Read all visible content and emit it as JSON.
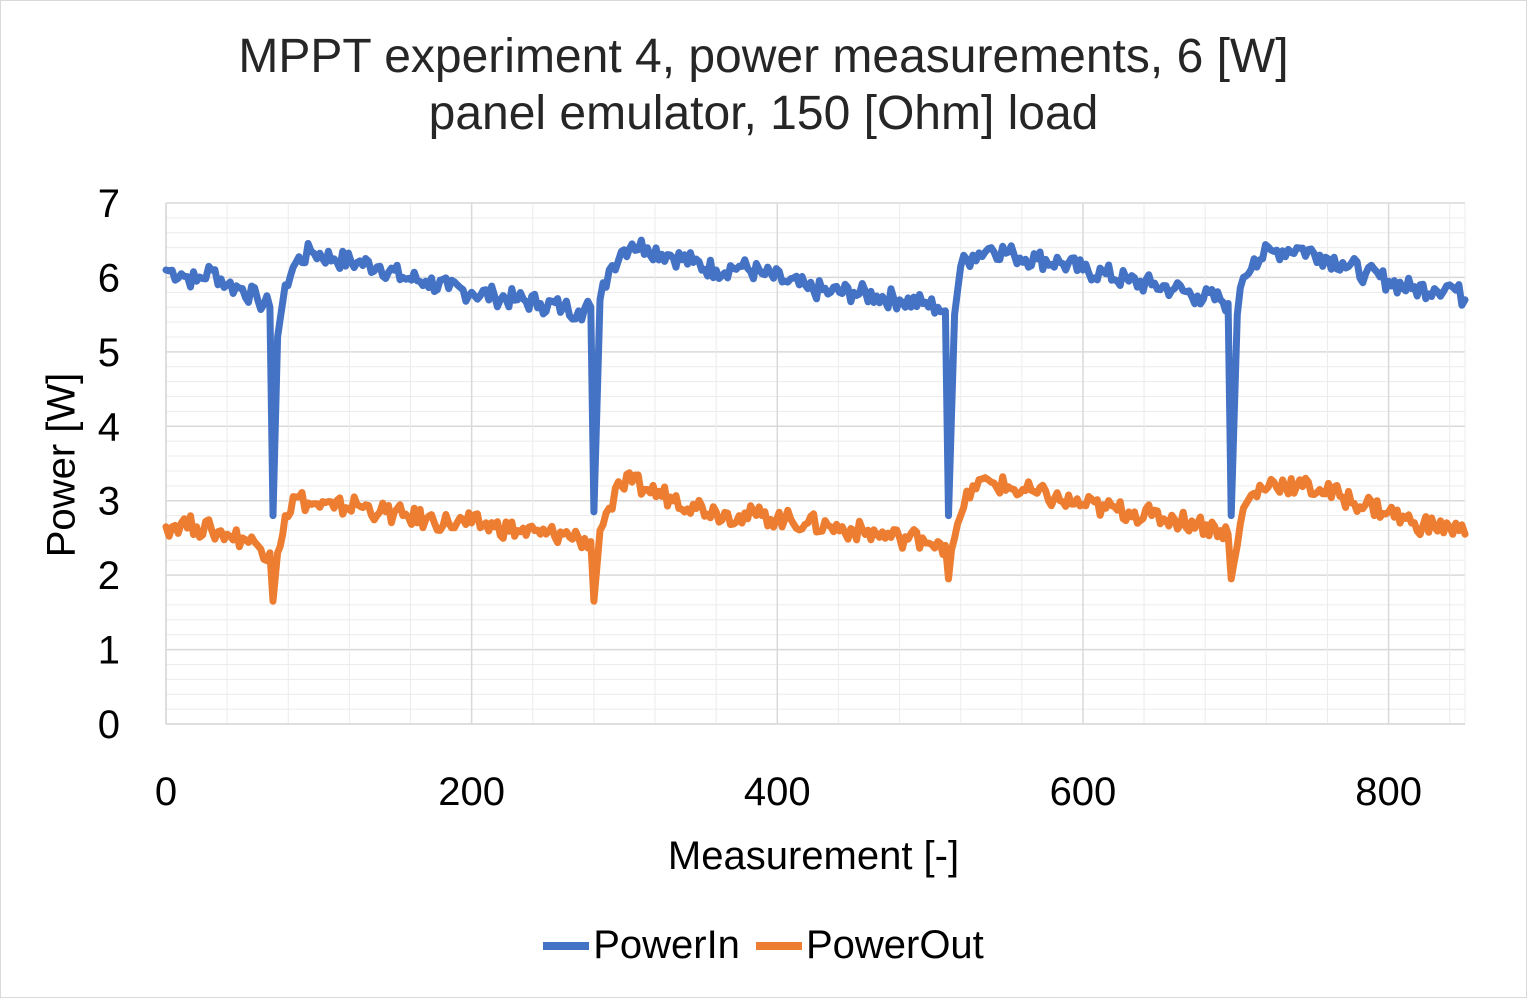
{
  "chart_data": {
    "type": "line",
    "title_line1": "MPPT experiment 4, power measurements, 6 [W]",
    "title_line2": "panel emulator, 150 [Ohm] load",
    "xlabel": "Measurement [-]",
    "ylabel": "Power [W]",
    "xlim": [
      0,
      850
    ],
    "ylim": [
      0,
      7
    ],
    "xticks": [
      "0",
      "200",
      "400",
      "600",
      "800"
    ],
    "yticks": [
      "0",
      "1",
      "2",
      "3",
      "4",
      "5",
      "6",
      "7"
    ],
    "grid": true,
    "legend_position": "bottom",
    "series": [
      {
        "name": "PowerIn",
        "color": "#4472c4",
        "points": [
          [
            0,
            6.1
          ],
          [
            10,
            6.05
          ],
          [
            20,
            5.95
          ],
          [
            30,
            6.1
          ],
          [
            40,
            5.9
          ],
          [
            50,
            5.85
          ],
          [
            60,
            5.7
          ],
          [
            68,
            5.6
          ],
          [
            70,
            2.8
          ],
          [
            73,
            5.2
          ],
          [
            78,
            5.9
          ],
          [
            85,
            6.2
          ],
          [
            95,
            6.35
          ],
          [
            110,
            6.25
          ],
          [
            125,
            6.2
          ],
          [
            140,
            6.15
          ],
          [
            155,
            6.0
          ],
          [
            170,
            5.95
          ],
          [
            185,
            5.85
          ],
          [
            200,
            5.8
          ],
          [
            215,
            5.75
          ],
          [
            230,
            5.7
          ],
          [
            245,
            5.65
          ],
          [
            260,
            5.6
          ],
          [
            270,
            5.55
          ],
          [
            278,
            5.6
          ],
          [
            280,
            2.85
          ],
          [
            284,
            5.7
          ],
          [
            290,
            6.1
          ],
          [
            298,
            6.35
          ],
          [
            305,
            6.45
          ],
          [
            315,
            6.4
          ],
          [
            330,
            6.3
          ],
          [
            345,
            6.2
          ],
          [
            360,
            6.1
          ],
          [
            375,
            6.15
          ],
          [
            390,
            6.05
          ],
          [
            405,
            5.95
          ],
          [
            420,
            5.85
          ],
          [
            435,
            5.8
          ],
          [
            450,
            5.8
          ],
          [
            465,
            5.75
          ],
          [
            480,
            5.7
          ],
          [
            495,
            5.65
          ],
          [
            505,
            5.6
          ],
          [
            510,
            5.55
          ],
          [
            512,
            2.8
          ],
          [
            516,
            5.5
          ],
          [
            520,
            6.15
          ],
          [
            528,
            6.3
          ],
          [
            540,
            6.4
          ],
          [
            555,
            6.3
          ],
          [
            570,
            6.25
          ],
          [
            585,
            6.2
          ],
          [
            600,
            6.1
          ],
          [
            615,
            6.05
          ],
          [
            630,
            5.95
          ],
          [
            645,
            5.9
          ],
          [
            660,
            5.85
          ],
          [
            675,
            5.75
          ],
          [
            690,
            5.7
          ],
          [
            695,
            5.65
          ],
          [
            697,
            2.8
          ],
          [
            701,
            5.5
          ],
          [
            705,
            6.0
          ],
          [
            712,
            6.25
          ],
          [
            725,
            6.35
          ],
          [
            740,
            6.4
          ],
          [
            755,
            6.3
          ],
          [
            770,
            6.2
          ],
          [
            785,
            6.05
          ],
          [
            800,
            5.95
          ],
          [
            815,
            5.85
          ],
          [
            830,
            5.85
          ],
          [
            840,
            5.9
          ],
          [
            850,
            5.7
          ]
        ]
      },
      {
        "name": "PowerOut",
        "color": "#ed7d31",
        "points": [
          [
            0,
            2.65
          ],
          [
            10,
            2.7
          ],
          [
            20,
            2.65
          ],
          [
            30,
            2.6
          ],
          [
            40,
            2.55
          ],
          [
            50,
            2.5
          ],
          [
            60,
            2.4
          ],
          [
            68,
            2.3
          ],
          [
            70,
            1.65
          ],
          [
            73,
            2.3
          ],
          [
            78,
            2.8
          ],
          [
            85,
            3.05
          ],
          [
            95,
            2.95
          ],
          [
            110,
            2.9
          ],
          [
            125,
            2.95
          ],
          [
            140,
            2.85
          ],
          [
            155,
            2.8
          ],
          [
            170,
            2.75
          ],
          [
            185,
            2.7
          ],
          [
            200,
            2.7
          ],
          [
            215,
            2.65
          ],
          [
            230,
            2.6
          ],
          [
            245,
            2.55
          ],
          [
            260,
            2.55
          ],
          [
            270,
            2.5
          ],
          [
            278,
            2.45
          ],
          [
            280,
            1.65
          ],
          [
            284,
            2.6
          ],
          [
            290,
            2.9
          ],
          [
            298,
            3.2
          ],
          [
            305,
            3.25
          ],
          [
            315,
            3.15
          ],
          [
            330,
            3.05
          ],
          [
            345,
            2.95
          ],
          [
            360,
            2.85
          ],
          [
            375,
            2.8
          ],
          [
            390,
            2.8
          ],
          [
            405,
            2.75
          ],
          [
            420,
            2.7
          ],
          [
            435,
            2.65
          ],
          [
            450,
            2.6
          ],
          [
            465,
            2.55
          ],
          [
            480,
            2.5
          ],
          [
            495,
            2.5
          ],
          [
            505,
            2.45
          ],
          [
            510,
            2.4
          ],
          [
            512,
            1.95
          ],
          [
            516,
            2.5
          ],
          [
            520,
            2.8
          ],
          [
            528,
            3.2
          ],
          [
            540,
            3.25
          ],
          [
            555,
            3.15
          ],
          [
            570,
            3.1
          ],
          [
            585,
            3.0
          ],
          [
            600,
            2.95
          ],
          [
            615,
            2.9
          ],
          [
            630,
            2.85
          ],
          [
            645,
            2.8
          ],
          [
            660,
            2.75
          ],
          [
            675,
            2.7
          ],
          [
            690,
            2.6
          ],
          [
            695,
            2.55
          ],
          [
            697,
            1.95
          ],
          [
            701,
            2.4
          ],
          [
            705,
            2.9
          ],
          [
            712,
            3.1
          ],
          [
            725,
            3.25
          ],
          [
            740,
            3.2
          ],
          [
            755,
            3.15
          ],
          [
            770,
            3.05
          ],
          [
            785,
            2.95
          ],
          [
            800,
            2.85
          ],
          [
            815,
            2.7
          ],
          [
            830,
            2.65
          ],
          [
            840,
            2.65
          ],
          [
            850,
            2.55
          ]
        ]
      }
    ]
  }
}
